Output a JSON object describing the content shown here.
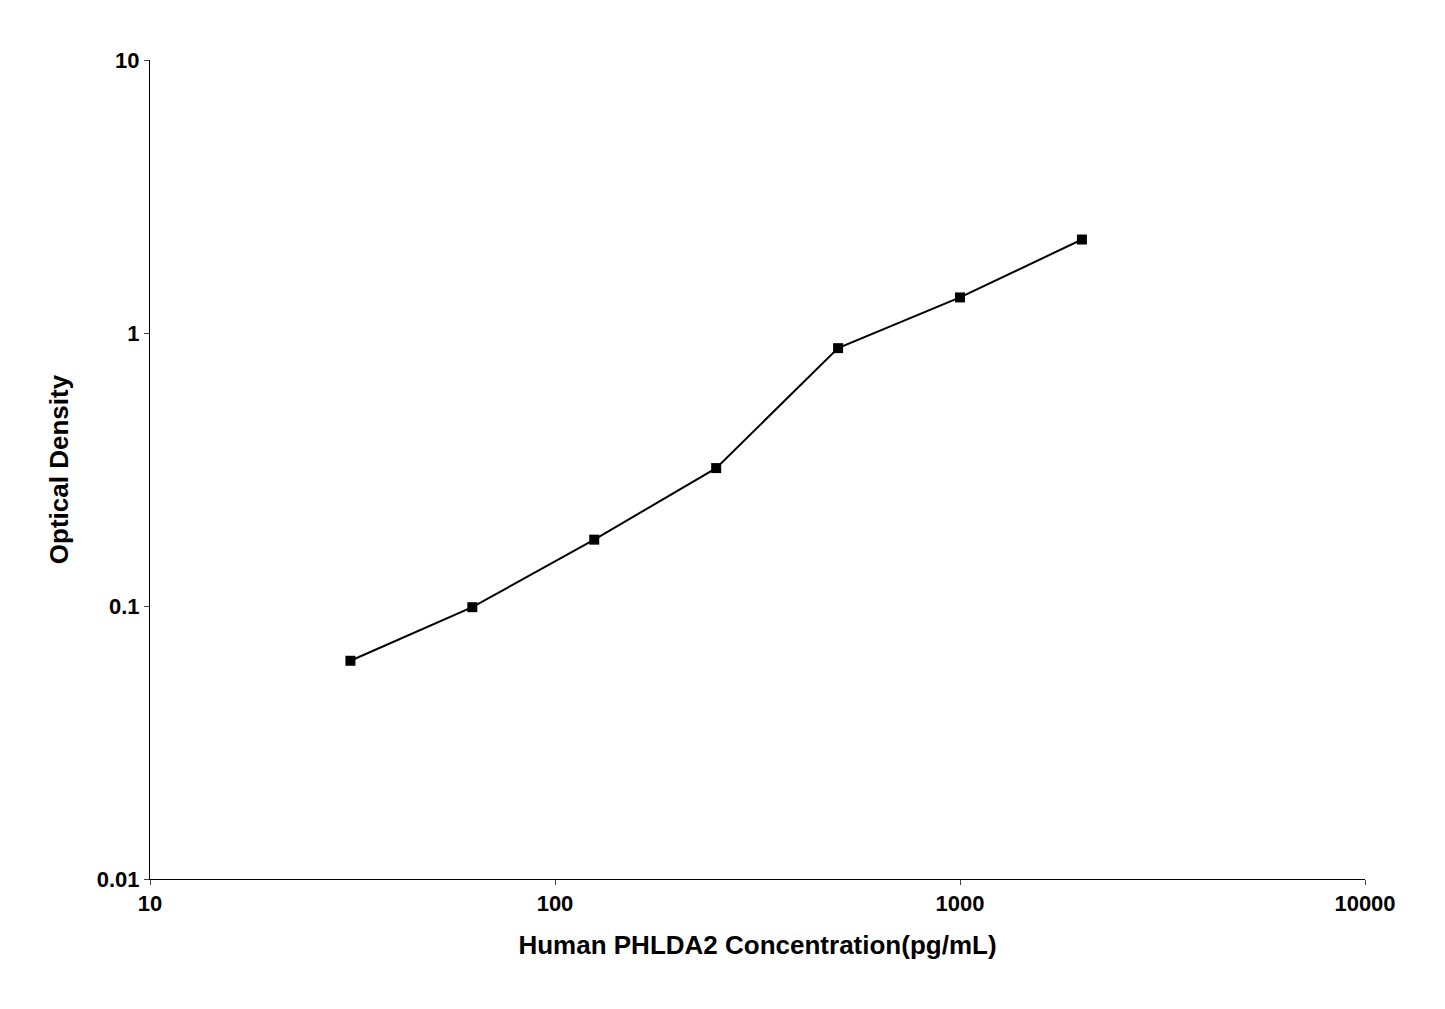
{
  "chart_data": {
    "type": "line",
    "x": [
      31.25,
      62.5,
      125,
      250,
      500,
      1000,
      2000
    ],
    "values": [
      0.063,
      0.099,
      0.175,
      0.32,
      0.88,
      1.35,
      2.2
    ],
    "xlabel": "Human PHLDA2 Concentration(pg/mL)",
    "ylabel": "Optical Density",
    "xlim": [
      10,
      10000
    ],
    "ylim": [
      0.01,
      10
    ],
    "xticks": [
      10,
      100,
      1000,
      10000
    ],
    "yticks": [
      0.01,
      0.1,
      1,
      10
    ],
    "log": true,
    "grid": false,
    "color": "#000000",
    "marker": "square",
    "line_style": "solid"
  }
}
